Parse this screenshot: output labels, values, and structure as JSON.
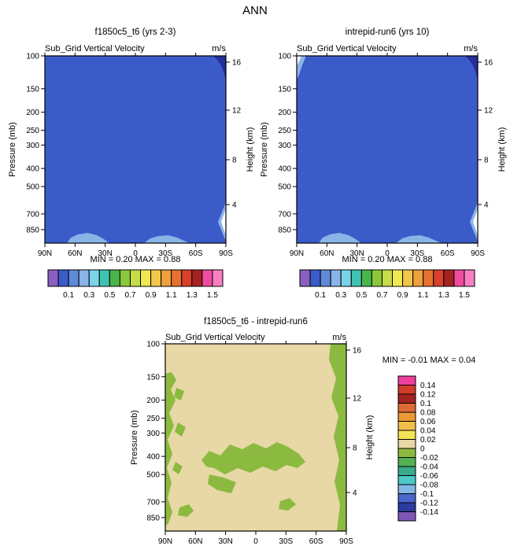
{
  "header": {
    "title": "ANN"
  },
  "panels": {
    "top_left": {
      "title": "f1850c5_t6 (yrs 2-3)",
      "subtitle": "Sub_Grid Vertical Velocity",
      "units": "m/s",
      "minmax": "MIN =  0.20  MAX =  0.88"
    },
    "top_right": {
      "title": "intrepid-run6 (yrs 10)",
      "subtitle": "Sub_Grid Vertical Velocity",
      "units": "m/s",
      "minmax": "MIN =  0.20  MAX =  0.88"
    },
    "bottom": {
      "title": "f1850c5_t6 - intrepid-run6",
      "subtitle": "Sub_Grid Vertical Velocity",
      "units": "m/s",
      "minmax": "MIN = -0.01  MAX =  0.04"
    }
  },
  "axes": {
    "pressure_label": "Pressure (mb)",
    "height_label": "Height (km)",
    "pressure_ticks": [
      "100",
      "150",
      "200",
      "250",
      "300",
      "400",
      "500",
      "700",
      "850"
    ],
    "height_ticks": [
      "16",
      "12",
      "8",
      "4"
    ],
    "lat_ticks": [
      "90N",
      "60N",
      "30N",
      "0",
      "30S",
      "60S",
      "90S"
    ]
  },
  "colorbar_top": {
    "labels": [
      "0.1",
      "0.3",
      "0.5",
      "0.7",
      "0.9",
      "1.1",
      "1.3",
      "1.5"
    ],
    "colors": [
      "#8a5fc0",
      "#3b5bc8",
      "#5e8ad8",
      "#8ab4e8",
      "#79d4e8",
      "#3fc2b0",
      "#49b54a",
      "#8cc83e",
      "#c6dc48",
      "#f0ea50",
      "#f2c84b",
      "#eda03c",
      "#e5732f",
      "#d8402a",
      "#a52222",
      "#ee4d9d",
      "#f97fc2"
    ]
  },
  "colorbar_diff": {
    "labels": [
      "0.14",
      "0.12",
      "0.1",
      "0.08",
      "0.06",
      "0.04",
      "0.02",
      "0",
      "-0.02",
      "-0.04",
      "-0.06",
      "-0.08",
      "-0.1",
      "-0.12",
      "-0.14"
    ],
    "colors": [
      "#ee3f9c",
      "#d23b2a",
      "#a32323",
      "#e06a33",
      "#ec9836",
      "#f2c04a",
      "#f2e456",
      "#e7d8a6",
      "#8cba40",
      "#52b152",
      "#3aa98c",
      "#4cc8c8",
      "#84b6e6",
      "#4a66cc",
      "#2d3a9e",
      "#7e57b4"
    ]
  },
  "colors": {
    "background": "#ffffff",
    "plot_blue": "#3b5bc8",
    "light_blue": "#8ab4e8",
    "corner_navy": "#242e9c",
    "white": "#ffffff",
    "tan": "#e7d8a6",
    "green": "#8cba40"
  },
  "chart_data": [
    {
      "type": "heatmap",
      "panel": "top_left",
      "title": "f1850c5_t6 (yrs 2-3)",
      "variable": "Sub_Grid Vertical Velocity",
      "units": "m/s",
      "x_ticks": [
        "90N",
        "60N",
        "30N",
        "0",
        "30S",
        "60S",
        "90S"
      ],
      "y_left_label": "Pressure (mb)",
      "y_left_ticks": [
        100,
        150,
        200,
        250,
        300,
        400,
        500,
        700,
        850
      ],
      "y_left_scale": "log",
      "y_right_label": "Height (km)",
      "y_right_ticks": [
        16,
        12,
        8,
        4
      ],
      "min": 0.2,
      "max": 0.88,
      "contour_levels": [
        0.1,
        0.2,
        0.3,
        0.4,
        0.5,
        0.6,
        0.7,
        0.8,
        0.9,
        1.0,
        1.1,
        1.2,
        1.3,
        1.4,
        1.5,
        1.6
      ],
      "legend_position": "below",
      "description": "Nearly uniform field ~0.2 m/s (blue); slightly larger values (light blue) near the surface around 60N and 30S; isolated maximum ~0.88 near 100 mb at the 90S edge (dark patch)."
    },
    {
      "type": "heatmap",
      "panel": "top_right",
      "title": "intrepid-run6 (yrs 10)",
      "variable": "Sub_Grid Vertical Velocity",
      "units": "m/s",
      "x_ticks": [
        "90N",
        "60N",
        "30N",
        "0",
        "30S",
        "60S",
        "90S"
      ],
      "y_left_label": "Pressure (mb)",
      "y_left_ticks": [
        100,
        150,
        200,
        250,
        300,
        400,
        500,
        700,
        850
      ],
      "y_left_scale": "log",
      "y_right_label": "Height (km)",
      "y_right_ticks": [
        16,
        12,
        8,
        4
      ],
      "min": 0.2,
      "max": 0.88,
      "contour_levels": [
        0.1,
        0.2,
        0.3,
        0.4,
        0.5,
        0.6,
        0.7,
        0.8,
        0.9,
        1.0,
        1.1,
        1.2,
        1.3,
        1.4,
        1.5,
        1.6
      ],
      "legend_position": "below",
      "description": "Nearly uniform field ~0.2 m/s (blue); light-blue surface bumps near 60N and 30S; small light patch near 100 mb at the 90N edge and dark patch at 90S top corner."
    },
    {
      "type": "heatmap",
      "panel": "bottom_difference",
      "title": "f1850c5_t6 - intrepid-run6",
      "variable": "Sub_Grid Vertical Velocity",
      "units": "m/s",
      "x_ticks": [
        "90N",
        "60N",
        "30N",
        "0",
        "30S",
        "60S",
        "90S"
      ],
      "y_left_label": "Pressure (mb)",
      "y_left_ticks": [
        100,
        150,
        200,
        250,
        300,
        400,
        500,
        700,
        850
      ],
      "y_left_scale": "log",
      "y_right_label": "Height (km)",
      "y_right_ticks": [
        16,
        12,
        8,
        4
      ],
      "min": -0.01,
      "max": 0.04,
      "contour_levels": [
        -0.14,
        -0.12,
        -0.1,
        -0.08,
        -0.06,
        -0.04,
        -0.02,
        0,
        0.02,
        0.04,
        0.06,
        0.08,
        0.1,
        0.12,
        0.14
      ],
      "legend_position": "right",
      "description": "Difference mostly 0 to 0.02 m/s (tan); weakly negative regions (-0.02 to 0, green) hugging the 90N edge below 150 mb, along the full 90S edge, and in a mid-tropospheric band near 300-500 mb across low latitudes."
    }
  ]
}
